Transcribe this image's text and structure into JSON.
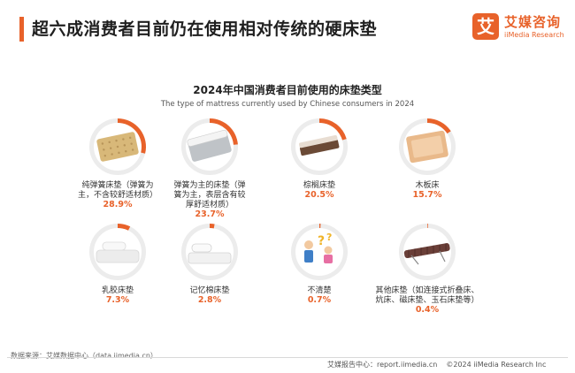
{
  "header": {
    "title": "超六成消费者目前仍在使用相对传统的硬床垫"
  },
  "logo": {
    "mark": "艾",
    "name_cn": "艾媒咨询",
    "name_en": "iiMedia Research"
  },
  "chart_data": {
    "type": "pie",
    "title": "2024年中国消费者目前使用的床垫类型",
    "subtitle": "The type of mattress currently used by Chinese consumers in 2024",
    "unit": "%",
    "categories": [
      "纯弹簧床垫（弹簧为主，不含较舒适材质）",
      "弹簧为主的床垫（弹簧为主，表层含有较厚舒适材质）",
      "棕榈床垫",
      "木板床",
      "乳胶床垫",
      "记忆棉床垫",
      "不清楚",
      "其他床垫（如连接式折叠床、炕床、磁床垫、玉石床垫等）"
    ],
    "values": [
      28.9,
      23.7,
      20.5,
      15.7,
      7.3,
      2.8,
      0.7,
      0.4
    ],
    "labels": [
      [
        "纯弹簧床垫（弹簧为",
        "主，不含较舒适材质）"
      ],
      [
        "弹簧为主的床垫（弹",
        "簧为主，表层含有较",
        "厚舒适材质）"
      ],
      [
        "棕榈床垫"
      ],
      [
        "木板床"
      ],
      [
        "乳胶床垫"
      ],
      [
        "记忆棉床垫"
      ],
      [
        "不清楚"
      ],
      [
        "其他床垫（如连接式折叠床、",
        "炕床、磁床垫、玉石床垫等）"
      ]
    ],
    "value_labels": [
      "28.9%",
      "23.7%",
      "20.5%",
      "15.7%",
      "7.3%",
      "2.8%",
      "0.7%",
      "0.4%"
    ],
    "icons": [
      "spring-mattress-icon",
      "spring-comfort-mattress-icon",
      "palm-mattress-icon",
      "wooden-bed-icon",
      "latex-mattress-icon",
      "memory-foam-mattress-icon",
      "confused-people-icon",
      "folding-bed-icon"
    ],
    "colors": {
      "highlight": "#e8622a",
      "track": "#ececec",
      "value_text": "#e8622a"
    },
    "legend": "none"
  },
  "footer": {
    "source": "数据来源：艾媒数据中心（data.iimedia.cn）",
    "report": "艾媒报告中心：report.iimedia.cn",
    "copyright": "©2024  iiMedia Research  Inc"
  }
}
